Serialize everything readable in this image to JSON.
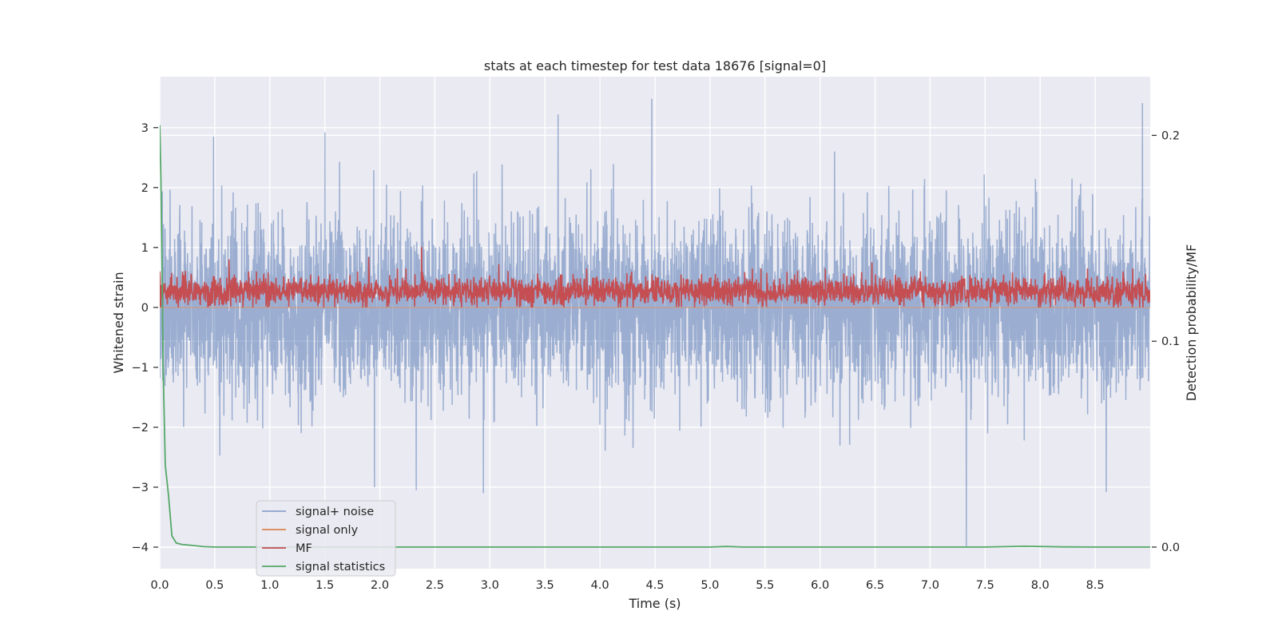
{
  "chart_data": {
    "type": "line",
    "title": "stats at each timestep for test data 18676 [signal=0]",
    "xlabel": "Time (s)",
    "ylabel": "Whitened strain",
    "y2label": "Detection probability/MF",
    "xlim": [
      0.0,
      9.0
    ],
    "ylim": [
      -4.36,
      3.85
    ],
    "y2lim": [
      -0.0105,
      0.2285
    ],
    "xticks": [
      "0.0",
      "0.5",
      "1.0",
      "1.5",
      "2.0",
      "2.5",
      "3.0",
      "3.5",
      "4.0",
      "4.5",
      "5.0",
      "5.5",
      "6.0",
      "6.5",
      "7.0",
      "7.5",
      "8.0",
      "8.5"
    ],
    "xtick_values": [
      0.0,
      0.5,
      1.0,
      1.5,
      2.0,
      2.5,
      3.0,
      3.5,
      4.0,
      4.5,
      5.0,
      5.5,
      6.0,
      6.5,
      7.0,
      7.5,
      8.0,
      8.5
    ],
    "yticks": [
      "−4",
      "−3",
      "−2",
      "−1",
      "0",
      "1",
      "2",
      "3"
    ],
    "ytick_values": [
      -4,
      -3,
      -2,
      -1,
      0,
      1,
      2,
      3
    ],
    "y2ticks": [
      "0.0",
      "0.1",
      "0.2"
    ],
    "y2tick_values": [
      0.0,
      0.1,
      0.2
    ],
    "legend": {
      "location": "lower-left",
      "entries": [
        {
          "label": "signal+ noise",
          "color": "#4c72b0"
        },
        {
          "label": "signal only",
          "color": "#dd8452"
        },
        {
          "label": "MF",
          "color": "#c44e52"
        },
        {
          "label": "signal statistics",
          "color": "#55a868"
        }
      ]
    },
    "series": [
      {
        "name": "signal+ noise",
        "axis": "left",
        "color": "#4c72b0",
        "style": "dense noise band",
        "x_range": [
          0.0,
          9.0
        ],
        "typical_band": [
          -1.2,
          1.2
        ],
        "peaks": [
          {
            "x": 0.49,
            "y": 2.85
          },
          {
            "x": 1.5,
            "y": 2.92
          },
          {
            "x": 3.62,
            "y": 3.22
          },
          {
            "x": 4.47,
            "y": 3.48
          },
          {
            "x": 8.93,
            "y": 3.41
          },
          {
            "x": 1.95,
            "y": -3.0
          },
          {
            "x": 2.33,
            "y": -3.05
          },
          {
            "x": 2.94,
            "y": -3.1
          },
          {
            "x": 7.33,
            "y": -4.0
          },
          {
            "x": 8.6,
            "y": -3.08
          }
        ]
      },
      {
        "name": "signal only",
        "axis": "left",
        "color": "#dd8452",
        "style": "flat line",
        "x": [
          0.0,
          9.0
        ],
        "y": [
          0.0,
          0.0
        ]
      },
      {
        "name": "MF",
        "axis": "left",
        "color": "#c44e52",
        "style": "noisy band",
        "x_range": [
          0.0,
          9.0
        ],
        "typical_band": [
          0.0,
          0.55
        ],
        "peaks": [
          {
            "x": 0.0,
            "y": 0.6
          },
          {
            "x": 0.63,
            "y": 0.8
          },
          {
            "x": 1.9,
            "y": 0.84
          },
          {
            "x": 2.38,
            "y": 1.01
          },
          {
            "x": 3.08,
            "y": 0.72
          },
          {
            "x": 6.47,
            "y": 0.75
          }
        ]
      },
      {
        "name": "signal statistics",
        "axis": "right",
        "color": "#55a868",
        "style": "line",
        "x": [
          0.0,
          0.01,
          0.02,
          0.03,
          0.05,
          0.08,
          0.11,
          0.15,
          0.2,
          0.3,
          0.4,
          0.5,
          1.0,
          2.0,
          3.0,
          4.0,
          5.0,
          5.15,
          5.3,
          6.0,
          7.0,
          7.5,
          7.85,
          8.2,
          8.5,
          9.0
        ],
        "y": [
          0.205,
          0.18,
          0.14,
          0.09,
          0.04,
          0.025,
          0.0055,
          0.002,
          0.0013,
          0.0008,
          0.0002,
          0.0,
          0.0,
          0.0,
          0.0,
          0.0,
          0.0,
          0.0003,
          0.0,
          0.0,
          0.0,
          0.0,
          0.0004,
          0.0001,
          0.0,
          0.0
        ]
      }
    ]
  }
}
